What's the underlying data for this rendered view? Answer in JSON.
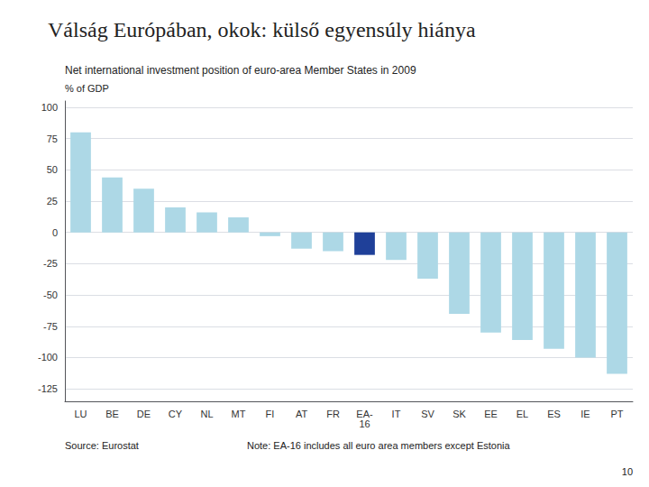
{
  "chart_data": {
    "type": "bar",
    "title": "Válság Európában, okok: külső egyensúly hiánya",
    "subtitle": "Net international investment position of euro-area Member States in 2009",
    "ylabel": "% of GDP",
    "annotations": [
      "Source: Eurostat",
      "Note: EA-16 includes all euro area members except Estonia",
      "10"
    ],
    "categories": [
      "LU",
      "BE",
      "DE",
      "CY",
      "NL",
      "MT",
      "FI",
      "AT",
      "FR",
      "EA-\n16",
      "IT",
      "SV",
      "SK",
      "EE",
      "EL",
      "ES",
      "IE",
      "PT"
    ],
    "values": [
      80,
      44,
      35,
      20,
      16,
      12,
      -3,
      -13,
      -15,
      -18,
      -22,
      -37,
      -65,
      -80,
      -86,
      -93,
      -100,
      -113
    ],
    "colors": [
      "#add8e6",
      "#add8e6",
      "#add8e6",
      "#add8e6",
      "#add8e6",
      "#add8e6",
      "#add8e6",
      "#add8e6",
      "#add8e6",
      "#1f4099",
      "#add8e6",
      "#add8e6",
      "#add8e6",
      "#add8e6",
      "#add8e6",
      "#add8e6",
      "#add8e6",
      "#add8e6"
    ],
    "ylim": [
      -135,
      105
    ],
    "yticks": [
      -125,
      -100,
      -75,
      -50,
      -25,
      0,
      25,
      50,
      75,
      100
    ],
    "grid": true
  }
}
